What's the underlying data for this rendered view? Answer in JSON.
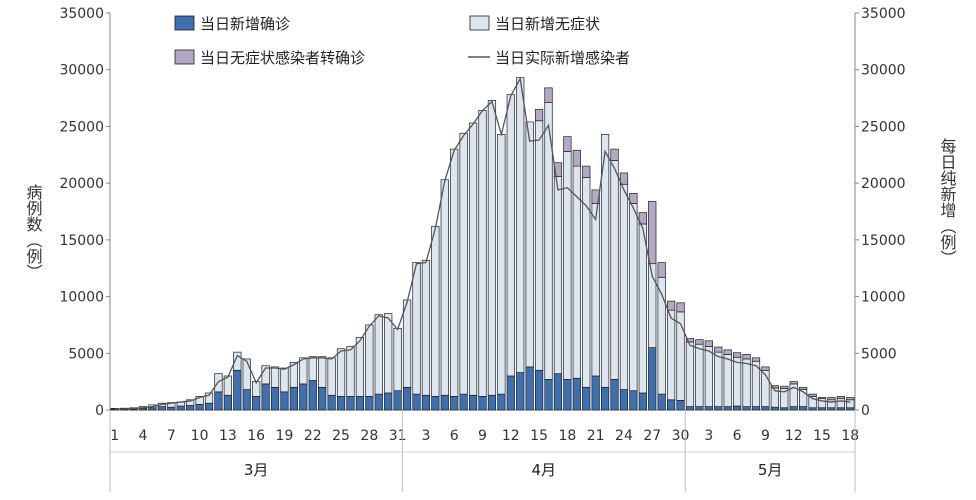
{
  "chart_data": {
    "type": "bar",
    "stacked": true,
    "ylim": [
      0,
      35000
    ],
    "y_ticks": [
      "0",
      "5000",
      "10000",
      "15000",
      "20000",
      "25000",
      "30000",
      "35000"
    ],
    "y_right_ticks": [
      "0",
      "5000",
      "10000",
      "15000",
      "20000",
      "25000",
      "30000",
      "35000"
    ],
    "ylabel_left": "病例数（例）",
    "ylabel_right": "每日纯新增（例）",
    "x_tick_labels": [
      "1",
      "4",
      "7",
      "10",
      "13",
      "16",
      "19",
      "22",
      "25",
      "28",
      "31",
      "3",
      "6",
      "9",
      "12",
      "15",
      "18",
      "21",
      "24",
      "27",
      "30",
      "3",
      "6",
      "9",
      "12",
      "15",
      "18"
    ],
    "months": [
      "3月",
      "4月",
      "5月"
    ],
    "legend": {
      "confirmed": "当日新增确诊",
      "asymptomatic": "当日新增无症状",
      "converted": "当日无症状感染者转确诊",
      "net_line": "当日实际新增感染者"
    },
    "colors": {
      "confirmed": "#3e6fae",
      "asymptomatic": "#dce6f1",
      "converted": "#b3a8c6",
      "line": "#555555",
      "outline": "#1f1f1f"
    },
    "dates": [
      "3-01",
      "3-02",
      "3-03",
      "3-04",
      "3-05",
      "3-06",
      "3-07",
      "3-08",
      "3-09",
      "3-10",
      "3-11",
      "3-12",
      "3-13",
      "3-14",
      "3-15",
      "3-16",
      "3-17",
      "3-18",
      "3-19",
      "3-20",
      "3-21",
      "3-22",
      "3-23",
      "3-24",
      "3-25",
      "3-26",
      "3-27",
      "3-28",
      "3-29",
      "3-30",
      "3-31",
      "4-01",
      "4-02",
      "4-03",
      "4-04",
      "4-05",
      "4-06",
      "4-07",
      "4-08",
      "4-09",
      "4-10",
      "4-11",
      "4-12",
      "4-13",
      "4-14",
      "4-15",
      "4-16",
      "4-17",
      "4-18",
      "4-19",
      "4-20",
      "4-21",
      "4-22",
      "4-23",
      "4-24",
      "4-25",
      "4-26",
      "4-27",
      "4-28",
      "4-29",
      "4-30",
      "5-01",
      "5-02",
      "5-03",
      "5-04",
      "5-05",
      "5-06",
      "5-07",
      "5-08",
      "5-09",
      "5-10",
      "5-11",
      "5-12",
      "5-13",
      "5-14",
      "5-15",
      "5-16",
      "5-17",
      "5-18"
    ],
    "series": [
      {
        "name": "当日新增确诊",
        "values": [
          80,
          70,
          90,
          150,
          200,
          300,
          250,
          350,
          400,
          500,
          600,
          1600,
          1300,
          3500,
          1800,
          1200,
          2300,
          2000,
          1600,
          2000,
          2300,
          2600,
          2000,
          1300,
          1200,
          1200,
          1200,
          1200,
          1400,
          1500,
          1700,
          2000,
          1400,
          1300,
          1200,
          1300,
          1200,
          1400,
          1300,
          1200,
          1300,
          1400,
          3000,
          3300,
          3800,
          3500,
          2700,
          3200,
          2700,
          2800,
          2000,
          3000,
          2000,
          2700,
          1800,
          1700,
          1500,
          5500,
          1400,
          900,
          850,
          300,
          300,
          300,
          300,
          300,
          350,
          300,
          300,
          300,
          250,
          200,
          300,
          300,
          200,
          200,
          200,
          200,
          200
        ]
      },
      {
        "name": "当日新增无症状",
        "values": [
          60,
          90,
          110,
          150,
          250,
          300,
          400,
          350,
          500,
          700,
          900,
          1600,
          1700,
          1600,
          2700,
          1300,
          1600,
          1800,
          2100,
          2200,
          2300,
          2100,
          2700,
          3300,
          4200,
          4400,
          5200,
          6300,
          7000,
          7000,
          5500,
          7700,
          11600,
          11900,
          15000,
          19000,
          21800,
          23000,
          24000,
          25200,
          26000,
          22900,
          24800,
          26000,
          21600,
          22000,
          24400,
          17400,
          20100,
          18700,
          18500,
          15200,
          22300,
          19300,
          18100,
          16500,
          14900,
          7400,
          10300,
          7900,
          7800,
          5700,
          5500,
          5300,
          4800,
          4600,
          4300,
          4200,
          4000,
          3200,
          1700,
          1700,
          2000,
          1500,
          1000,
          800,
          700,
          800,
          700
        ]
      },
      {
        "name": "当日无症状感染者转确诊",
        "values": [
          0,
          0,
          0,
          0,
          0,
          0,
          0,
          0,
          0,
          0,
          0,
          0,
          0,
          0,
          0,
          0,
          0,
          0,
          0,
          0,
          0,
          0,
          0,
          0,
          0,
          0,
          0,
          0,
          0,
          0,
          0,
          0,
          0,
          0,
          0,
          0,
          0,
          0,
          0,
          0,
          0,
          0,
          0,
          0,
          0,
          1000,
          1300,
          1200,
          1300,
          1400,
          1000,
          1200,
          0,
          1000,
          1000,
          900,
          1000,
          5500,
          1300,
          800,
          800,
          300,
          400,
          500,
          450,
          400,
          400,
          400,
          300,
          300,
          200,
          200,
          200,
          200,
          200,
          100,
          200,
          200,
          200
        ]
      }
    ],
    "net_line": {
      "name": "当日实际新增感染者",
      "values": [
        80,
        100,
        150,
        200,
        300,
        500,
        600,
        700,
        800,
        1100,
        1300,
        2500,
        2900,
        4800,
        4300,
        2400,
        3700,
        3700,
        3600,
        4000,
        4500,
        4600,
        4600,
        4500,
        5200,
        5300,
        6100,
        7400,
        8300,
        8100,
        7100,
        9500,
        12900,
        13000,
        16000,
        20200,
        22900,
        24200,
        25200,
        26400,
        27200,
        24300,
        27700,
        29200,
        23700,
        23800,
        25100,
        19400,
        19600,
        18800,
        18000,
        16800,
        22800,
        21300,
        19400,
        17800,
        16000,
        11800,
        10200,
        8100,
        7600,
        5700,
        5400,
        5200,
        4700,
        4500,
        4200,
        4100,
        3900,
        3100,
        1700,
        1600,
        2000,
        1600,
        1000,
        800,
        700,
        800,
        700
      ]
    }
  }
}
